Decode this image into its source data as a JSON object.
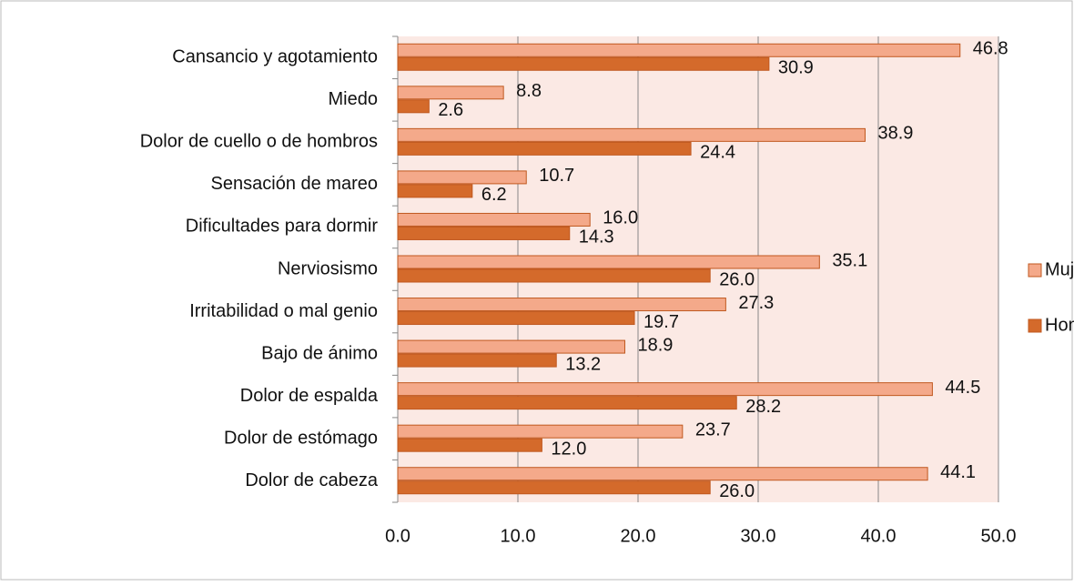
{
  "chart_data": {
    "type": "bar",
    "orientation": "horizontal",
    "categories": [
      "Cansancio y agotamiento",
      "Miedo",
      "Dolor de cuello o de hombros",
      "Sensación de mareo",
      "Dificultades para dormir",
      "Nerviosismo",
      "Irritabilidad o mal genio",
      "Bajo de ánimo",
      "Dolor de espalda",
      "Dolor de estómago",
      "Dolor de cabeza"
    ],
    "series": [
      {
        "name": "Mujer",
        "color": "#f4a98a",
        "values": [
          46.8,
          8.8,
          38.9,
          10.7,
          16.0,
          35.1,
          27.3,
          18.9,
          44.5,
          23.7,
          44.1
        ],
        "value_labels": [
          "46.8",
          "8.8",
          "38.9",
          "10.7",
          "16.0",
          "35.1",
          "27.3",
          "18.9",
          "44.5",
          "23.7",
          "44.1"
        ]
      },
      {
        "name": "Hombre",
        "color": "#d46a2b",
        "values": [
          30.9,
          2.6,
          24.4,
          6.2,
          14.3,
          26.0,
          19.7,
          13.2,
          28.2,
          12.0,
          26.0
        ],
        "value_labels": [
          "30.9",
          "2.6",
          "24.4",
          "6.2",
          "14.3",
          "26.0",
          "19.7",
          "13.2",
          "28.2",
          "12.0",
          "26.0"
        ]
      }
    ],
    "xlim": [
      0,
      50
    ],
    "xticks": [
      {
        "value": 0,
        "label": "0.0"
      },
      {
        "value": 10,
        "label": "10.0"
      },
      {
        "value": 20,
        "label": "20.0"
      },
      {
        "value": 30,
        "label": "30.0"
      },
      {
        "value": 40,
        "label": "40.0"
      },
      {
        "value": 50,
        "label": "50.0"
      }
    ],
    "grid": true,
    "legend": "right"
  }
}
